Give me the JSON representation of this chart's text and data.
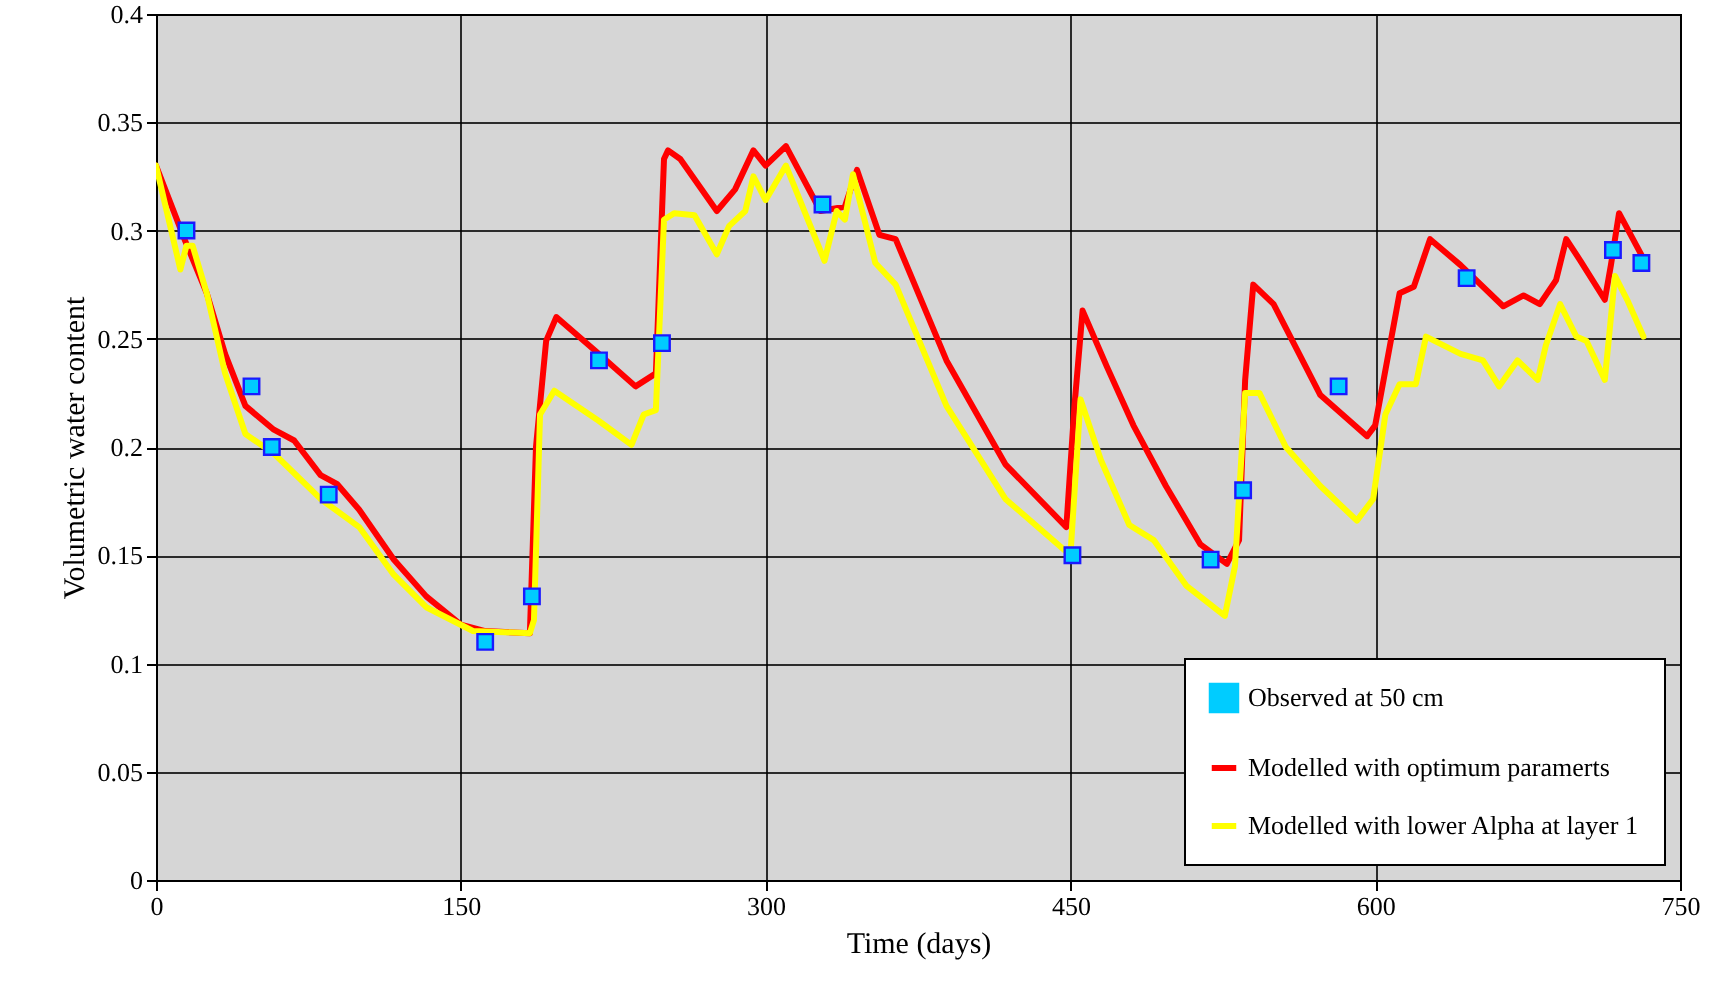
{
  "chart_data": {
    "type": "line",
    "xlabel": "Time (days)",
    "ylabel": "Volumetric water content",
    "xlim": [
      0,
      750
    ],
    "xticks": [
      0,
      150,
      300,
      450,
      600,
      750
    ],
    "ylim": [
      0,
      0.4
    ],
    "yticks": [
      0,
      0.05,
      0.1,
      0.15,
      0.2,
      0.25,
      0.3,
      0.35,
      0.4
    ],
    "grid": true,
    "legend": "bottom right",
    "series": [
      {
        "name": "Observed at 50 cm",
        "type": "scatter",
        "marker": "square",
        "color": "#00ccff",
        "x": [
          15,
          47,
          57,
          85,
          162,
          185,
          218,
          249,
          328,
          451,
          519,
          535,
          582,
          645,
          717,
          731
        ],
        "values": [
          0.3,
          0.228,
          0.2,
          0.178,
          0.11,
          0.131,
          0.24,
          0.248,
          0.312,
          0.15,
          0.148,
          0.18,
          0.228,
          0.278,
          0.291,
          0.285
        ]
      },
      {
        "name": "Modelled with optimum paramerts",
        "color": "#ff0000",
        "x": [
          0,
          14,
          25,
          34,
          44,
          58,
          68,
          81,
          89,
          100,
          117,
          133,
          150,
          162,
          184,
          187,
          192,
          197,
          218,
          236,
          246,
          250,
          252,
          258,
          276,
          285,
          294,
          300,
          310,
          327,
          339,
          345,
          356,
          364,
          389,
          418,
          448,
          452,
          456,
          468,
          481,
          497,
          514,
          527,
          533,
          536,
          540,
          550,
          573,
          596,
          600,
          612,
          619,
          627,
          642,
          663,
          673,
          681,
          689,
          694,
          701,
          713,
          716,
          720,
          732
        ],
        "values": [
          0.33,
          0.296,
          0.271,
          0.243,
          0.219,
          0.208,
          0.203,
          0.187,
          0.183,
          0.171,
          0.148,
          0.131,
          0.118,
          0.115,
          0.114,
          0.2,
          0.249,
          0.26,
          0.243,
          0.228,
          0.234,
          0.333,
          0.337,
          0.333,
          0.309,
          0.319,
          0.337,
          0.33,
          0.339,
          0.309,
          0.311,
          0.328,
          0.298,
          0.296,
          0.24,
          0.192,
          0.163,
          0.219,
          0.263,
          0.237,
          0.21,
          0.182,
          0.155,
          0.146,
          0.157,
          0.231,
          0.275,
          0.266,
          0.224,
          0.205,
          0.21,
          0.271,
          0.274,
          0.296,
          0.284,
          0.265,
          0.27,
          0.266,
          0.277,
          0.296,
          0.286,
          0.268,
          0.284,
          0.308,
          0.287
        ]
      },
      {
        "name": "Modelled with lower Alpha at layer 1",
        "color": "#ffff00",
        "x": [
          0,
          12,
          15,
          18,
          25,
          34,
          44,
          58,
          81,
          100,
          117,
          133,
          156,
          184,
          186,
          189,
          196,
          218,
          234,
          240,
          246,
          250,
          255,
          265,
          276,
          282,
          290,
          294,
          300,
          310,
          329,
          335,
          339,
          343,
          354,
          364,
          389,
          418,
          450,
          455,
          465,
          479,
          491,
          507,
          526,
          531,
          536,
          543,
          556,
          573,
          591,
          599,
          605,
          612,
          620,
          625,
          642,
          653,
          661,
          670,
          680,
          684,
          691,
          699,
          704,
          713,
          718,
          724,
          732
        ],
        "values": [
          0.33,
          0.282,
          0.293,
          0.293,
          0.271,
          0.234,
          0.206,
          0.197,
          0.176,
          0.163,
          0.141,
          0.126,
          0.115,
          0.114,
          0.12,
          0.215,
          0.226,
          0.212,
          0.201,
          0.215,
          0.217,
          0.305,
          0.308,
          0.307,
          0.289,
          0.302,
          0.309,
          0.325,
          0.314,
          0.33,
          0.286,
          0.309,
          0.305,
          0.326,
          0.285,
          0.275,
          0.219,
          0.176,
          0.15,
          0.222,
          0.194,
          0.164,
          0.157,
          0.136,
          0.122,
          0.145,
          0.225,
          0.225,
          0.2,
          0.182,
          0.166,
          0.176,
          0.215,
          0.229,
          0.229,
          0.251,
          0.243,
          0.24,
          0.228,
          0.24,
          0.231,
          0.247,
          0.266,
          0.251,
          0.249,
          0.231,
          0.279,
          0.268,
          0.251
        ]
      }
    ]
  }
}
